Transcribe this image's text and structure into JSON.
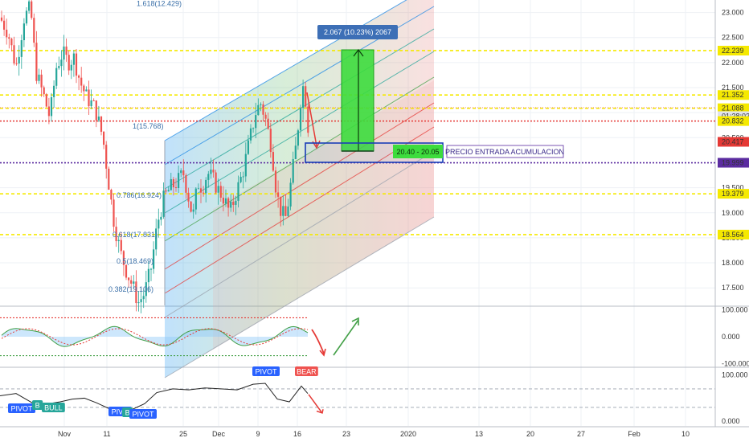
{
  "chart_data": {
    "type": "candlestick",
    "colors": {
      "up": "#26a69a",
      "down": "#ef5350",
      "yellow_line": "#f5e900",
      "purple_line": "#5b2ca0",
      "green_box": "#3ddc3d",
      "label_blue": "#3d6fb6"
    },
    "main_pane": {
      "ylim": [
        17.15,
        23.25
      ],
      "y_ticks": [
        "23.000",
        "22.500",
        "22.000",
        "21.500",
        "21.000",
        "20.500",
        "19.500",
        "19.000",
        "18.500",
        "18.000",
        "17.500"
      ],
      "price_tags": [
        {
          "text": "22.239",
          "value": 22.239,
          "style": "yellow"
        },
        {
          "text": "21.352",
          "value": 21.352,
          "style": "yellow"
        },
        {
          "text": "21.100",
          "value": 21.1,
          "style": "plain"
        },
        {
          "text": "21.088",
          "value": 21.088,
          "style": "yellow"
        },
        {
          "text": "01:28:02",
          "value": 20.93,
          "style": "grey"
        },
        {
          "text": "20.832",
          "value": 20.832,
          "style": "yellow"
        },
        {
          "text": "20.417",
          "value": 20.417,
          "style": "red"
        },
        {
          "text": "19.999",
          "value": 19.999,
          "style": "purple"
        },
        {
          "text": "19.379",
          "value": 19.379,
          "style": "yellow"
        },
        {
          "text": "18.564",
          "value": 18.564,
          "style": "yellow"
        }
      ],
      "horizontal_lines": [
        {
          "value": 22.239,
          "style": "yellow"
        },
        {
          "value": 21.352,
          "style": "yellow"
        },
        {
          "value": 21.088,
          "style": "yellow"
        },
        {
          "value": 20.832,
          "style": "red-dotted"
        },
        {
          "value": 19.999,
          "style": "purple-dotted"
        },
        {
          "value": 19.379,
          "style": "yellow"
        },
        {
          "value": 18.564,
          "style": "yellow"
        }
      ],
      "fib_labels": [
        {
          "text": "1.618(12.429)",
          "value": 23.18
        },
        {
          "text": "1(15.768)",
          "value": 20.73
        },
        {
          "text": "0.786(16.924)",
          "value": 19.35
        },
        {
          "text": "0.618(17.831)",
          "value": 18.56
        },
        {
          "text": "0.5(18.469)",
          "value": 18.03
        },
        {
          "text": "0.382(19.106)",
          "value": 17.47
        }
      ],
      "measure_label": "2.067 (10.23%) 2067",
      "zone_label": "20.40 - 20.05",
      "zone_note": "PRECIO ENTRADA ACUMULACION"
    },
    "osc_pane": {
      "ylim": [
        -110,
        110
      ],
      "y_ticks": [
        "100.000",
        "0.000",
        "-100.000"
      ]
    },
    "rsi_pane": {
      "ylim": [
        -10,
        115
      ],
      "y_ticks": [
        "100.000",
        "0.000"
      ],
      "tags": [
        {
          "text": "PIVOT",
          "color": "#2962ff"
        },
        {
          "text": "B",
          "color": "#26a69a"
        },
        {
          "text": "BULL",
          "color": "#26a69a"
        },
        {
          "text": "PIVO",
          "color": "#2962ff"
        },
        {
          "text": "B",
          "color": "#26a69a"
        },
        {
          "text": "PIVOT",
          "color": "#2962ff"
        },
        {
          "text": "PIVOT",
          "color": "#2962ff"
        },
        {
          "text": "BEAR",
          "color": "#ef5350"
        }
      ]
    },
    "x_ticks": [
      "Nov",
      "11",
      "25",
      "Dec",
      "9",
      "16",
      "23",
      "2020",
      "13",
      "20",
      "27",
      "Feb",
      "10"
    ]
  }
}
